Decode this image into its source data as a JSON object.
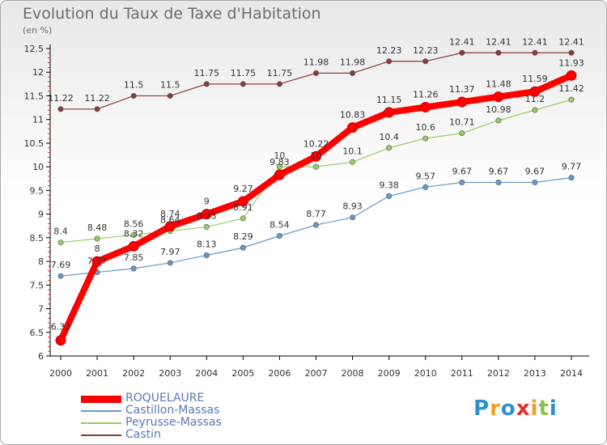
{
  "chart_data": {
    "type": "line",
    "title": "Evolution du Taux de Taxe d'Habitation",
    "subtitle": "(en %)",
    "xlabel": "",
    "ylabel": "",
    "categories": [
      "2000",
      "2001",
      "2002",
      "2003",
      "2004",
      "2005",
      "2006",
      "2007",
      "2008",
      "2009",
      "2010",
      "2011",
      "2012",
      "2013",
      "2014"
    ],
    "ylim": [
      6,
      12.5
    ],
    "yticks": [
      "6",
      "6.5",
      "7",
      "7.5",
      "8",
      "8.5",
      "9",
      "9.5",
      "10",
      "10.5",
      "11",
      "11.5",
      "12",
      "12.5"
    ],
    "grid": false,
    "series": [
      {
        "name": "ROQUELAURE",
        "color": "#ff0000",
        "values": [
          6.33,
          8,
          8.32,
          8.74,
          9,
          9.27,
          9.83,
          10.22,
          10.83,
          11.15,
          11.26,
          11.37,
          11.48,
          11.59,
          11.93
        ],
        "labels": [
          "6.33",
          "8",
          "8.32",
          "8.74",
          "9",
          "9.27",
          "9.83",
          "10.22",
          "10.83",
          "11.15",
          "11.26",
          "11.37",
          "11.48",
          "11.59",
          "11.93"
        ]
      },
      {
        "name": "Castillon-Massas",
        "color": "#6699cc",
        "values": [
          7.69,
          7.77,
          7.85,
          7.97,
          8.13,
          8.29,
          8.54,
          8.77,
          8.93,
          9.38,
          9.57,
          9.67,
          9.67,
          9.67,
          9.77
        ],
        "labels": [
          "7.69",
          "7.77",
          "7.85",
          "7.97",
          "8.13",
          "8.29",
          "8.54",
          "8.77",
          "8.93",
          "9.38",
          "9.57",
          "9.67",
          "9.67",
          "9.67",
          "9.77"
        ]
      },
      {
        "name": "Peyrusse-Massas",
        "color": "#99cc66",
        "values": [
          8.4,
          8.48,
          8.56,
          8.64,
          8.73,
          8.91,
          10,
          10,
          10.1,
          10.4,
          10.6,
          10.71,
          10.98,
          11.2,
          11.42
        ],
        "labels": [
          "8.4",
          "8.48",
          "8.56",
          "8.64",
          "8.73",
          "8.91",
          "10",
          "10",
          "10.1",
          "10.4",
          "10.6",
          "10.71",
          "10.98",
          "11.2",
          "11.42"
        ]
      },
      {
        "name": "Castin",
        "color": "#8b3a3a",
        "values": [
          11.22,
          11.22,
          11.5,
          11.5,
          11.75,
          11.75,
          11.75,
          11.98,
          11.98,
          12.23,
          12.23,
          12.41,
          12.41,
          12.41,
          12.41
        ],
        "labels": [
          "11.22",
          "11.22",
          "11.5",
          "11.5",
          "11.75",
          "11.75",
          "11.75",
          "11.98",
          "11.98",
          "12.23",
          "12.23",
          "12.41",
          "12.41",
          "12.41",
          "12.41"
        ]
      }
    ]
  },
  "logo": {
    "text": "Proxiti"
  }
}
